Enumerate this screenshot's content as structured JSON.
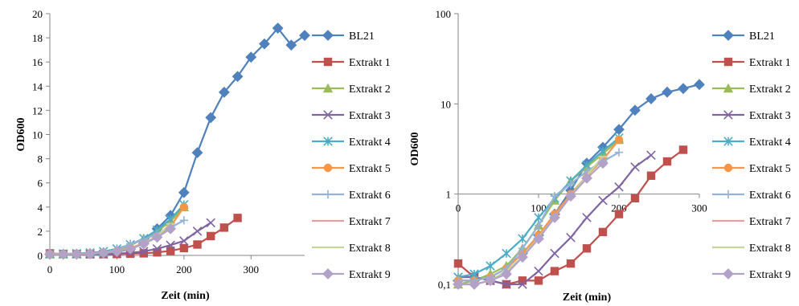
{
  "chart_data": [
    {
      "type": "line",
      "title": "",
      "xlabel": "Zeit (min)",
      "ylabel": "OD600",
      "xlim": [
        0,
        380
      ],
      "ylim": [
        0,
        20
      ],
      "x_ticks": [
        "0",
        "100",
        "200",
        "300"
      ],
      "y_ticks": [
        "0",
        "2",
        "4",
        "6",
        "8",
        "10",
        "12",
        "14",
        "16",
        "18",
        "20"
      ],
      "grid": false,
      "legend_position": "right",
      "series": [
        {
          "name": "BL21",
          "color": "#4f81bd",
          "marker": "diamond",
          "x": [
            0,
            20,
            40,
            60,
            80,
            100,
            120,
            140,
            160,
            180,
            200,
            220,
            240,
            260,
            280,
            300,
            320,
            340,
            360,
            380
          ],
          "y": [
            0.1,
            0.1,
            0.1,
            0.15,
            0.2,
            0.3,
            0.5,
            1.0,
            2.2,
            3.3,
            5.2,
            8.5,
            11.4,
            13.5,
            14.8,
            16.4,
            17.5,
            18.8,
            17.4,
            18.2
          ]
        },
        {
          "name": "Extrakt 1",
          "color": "#c0504d",
          "marker": "square",
          "x": [
            0,
            20,
            40,
            60,
            80,
            100,
            120,
            140,
            160,
            180,
            200,
            220,
            240,
            260,
            280
          ],
          "y": [
            0.17,
            0.12,
            0.11,
            0.1,
            0.1,
            0.11,
            0.14,
            0.17,
            0.25,
            0.38,
            0.6,
            0.9,
            1.6,
            2.3,
            3.1
          ]
        },
        {
          "name": "Extrakt 2",
          "color": "#9bbb59",
          "marker": "triangle",
          "x": [
            0,
            20,
            40,
            60,
            80,
            100,
            120,
            140,
            160,
            180,
            200
          ],
          "y": [
            0.1,
            0.1,
            0.11,
            0.15,
            0.25,
            0.45,
            0.8,
            1.4,
            2.0,
            2.8,
            4.0
          ]
        },
        {
          "name": "Extrakt 3",
          "color": "#8064a2",
          "marker": "x",
          "x": [
            0,
            20,
            40,
            60,
            80,
            100,
            120,
            140,
            160,
            180,
            200,
            220,
            240
          ],
          "y": [
            0.12,
            0.12,
            0.11,
            0.1,
            0.1,
            0.14,
            0.22,
            0.33,
            0.55,
            0.85,
            1.2,
            2.0,
            2.7
          ]
        },
        {
          "name": "Extrakt 4",
          "color": "#4bacc6",
          "marker": "star",
          "x": [
            0,
            20,
            40,
            60,
            80,
            100,
            120,
            140,
            160,
            180,
            200
          ],
          "y": [
            0.12,
            0.13,
            0.16,
            0.22,
            0.32,
            0.55,
            0.9,
            1.4,
            2.1,
            3.0,
            4.2
          ]
        },
        {
          "name": "Extrakt 5",
          "color": "#f79646",
          "marker": "circle",
          "x": [
            0,
            20,
            40,
            60,
            80,
            100,
            120,
            140,
            160,
            180,
            200
          ],
          "y": [
            0.11,
            0.11,
            0.12,
            0.15,
            0.22,
            0.35,
            0.6,
            1.0,
            1.6,
            2.4,
            4.0
          ]
        },
        {
          "name": "Extrakt 6",
          "color": "#95b3d7",
          "marker": "plus",
          "x": [
            0,
            20,
            40,
            60,
            80,
            100,
            120,
            140,
            160,
            180,
            200
          ],
          "y": [
            0.11,
            0.11,
            0.12,
            0.15,
            0.25,
            0.45,
            0.95,
            1.3,
            1.8,
            2.3,
            2.9
          ]
        },
        {
          "name": "Extrakt 7",
          "color": "#e6a19f",
          "marker": "dash",
          "x": [
            0,
            20,
            40,
            60,
            80,
            100,
            120,
            140,
            160,
            180
          ],
          "y": [
            0.1,
            0.1,
            0.11,
            0.14,
            0.2,
            0.33,
            0.55,
            0.95,
            1.6,
            2.6
          ]
        },
        {
          "name": "Extrakt 8",
          "color": "#c3d69b",
          "marker": "dash",
          "x": [
            0,
            20,
            40,
            60,
            80,
            100,
            120,
            140,
            160,
            180
          ],
          "y": [
            0.1,
            0.1,
            0.11,
            0.14,
            0.2,
            0.33,
            0.55,
            0.95,
            1.6,
            2.6
          ]
        },
        {
          "name": "Extrakt 9",
          "color": "#b3a2c7",
          "marker": "diamond",
          "x": [
            0,
            20,
            40,
            60,
            80,
            100,
            120,
            140,
            160,
            180
          ],
          "y": [
            0.1,
            0.1,
            0.11,
            0.13,
            0.2,
            0.32,
            0.55,
            0.95,
            1.5,
            2.2
          ]
        }
      ]
    },
    {
      "type": "line",
      "title": "",
      "xlabel": "Zeit (min)",
      "ylabel": "OD600",
      "xlim": [
        0,
        300
      ],
      "ylim": [
        0.1,
        100
      ],
      "yscale": "log",
      "x_ticks": [
        "0",
        "100",
        "200",
        "300"
      ],
      "y_ticks": [
        "0,1",
        "1",
        "10",
        "100"
      ],
      "grid": false,
      "legend_position": "right",
      "series": [
        {
          "name": "BL21",
          "color": "#4f81bd",
          "marker": "diamond",
          "x": [
            0,
            20,
            40,
            60,
            80,
            100,
            120,
            140,
            160,
            180,
            200,
            220,
            240,
            260,
            280,
            300
          ],
          "y": [
            0.11,
            0.11,
            0.12,
            0.15,
            0.22,
            0.35,
            0.6,
            1.1,
            2.2,
            3.3,
            5.2,
            8.5,
            11.4,
            13.5,
            14.8,
            16.4
          ]
        },
        {
          "name": "Extrakt 1",
          "color": "#c0504d",
          "marker": "square",
          "x": [
            0,
            20,
            40,
            60,
            80,
            100,
            120,
            140,
            160,
            180,
            200,
            220,
            240,
            260,
            280
          ],
          "y": [
            0.17,
            0.12,
            0.11,
            0.1,
            0.11,
            0.11,
            0.14,
            0.17,
            0.25,
            0.38,
            0.6,
            0.9,
            1.6,
            2.3,
            3.1
          ]
        },
        {
          "name": "Extrakt 2",
          "color": "#9bbb59",
          "marker": "triangle",
          "x": [
            0,
            20,
            40,
            60,
            80,
            100,
            120,
            140,
            160,
            180,
            200
          ],
          "y": [
            0.1,
            0.11,
            0.13,
            0.16,
            0.25,
            0.45,
            0.85,
            1.4,
            2.0,
            2.8,
            4.0
          ]
        },
        {
          "name": "Extrakt 3",
          "color": "#8064a2",
          "marker": "x",
          "x": [
            0,
            20,
            40,
            60,
            80,
            100,
            120,
            140,
            160,
            180,
            200,
            220,
            240
          ],
          "y": [
            0.12,
            0.12,
            0.11,
            0.1,
            0.1,
            0.14,
            0.22,
            0.33,
            0.55,
            0.85,
            1.2,
            2.0,
            2.7
          ]
        },
        {
          "name": "Extrakt 4",
          "color": "#4bacc6",
          "marker": "star",
          "x": [
            0,
            20,
            40,
            60,
            80,
            100,
            120,
            140,
            160,
            180,
            200
          ],
          "y": [
            0.12,
            0.13,
            0.16,
            0.22,
            0.32,
            0.55,
            0.9,
            1.4,
            2.1,
            3.0,
            4.2
          ]
        },
        {
          "name": "Extrakt 5",
          "color": "#f79646",
          "marker": "circle",
          "x": [
            0,
            20,
            40,
            60,
            80,
            100,
            120,
            140,
            160,
            180,
            200
          ],
          "y": [
            0.11,
            0.11,
            0.12,
            0.15,
            0.22,
            0.35,
            0.6,
            1.0,
            1.6,
            2.4,
            4.0
          ]
        },
        {
          "name": "Extrakt 6",
          "color": "#95b3d7",
          "marker": "plus",
          "x": [
            0,
            20,
            40,
            60,
            80,
            100,
            120,
            140,
            160,
            180,
            200
          ],
          "y": [
            0.11,
            0.11,
            0.12,
            0.15,
            0.25,
            0.45,
            0.95,
            1.3,
            1.8,
            2.3,
            2.9
          ]
        },
        {
          "name": "Extrakt 7",
          "color": "#e6a19f",
          "marker": "dash",
          "x": [
            0,
            20,
            40,
            60,
            80,
            100,
            120,
            140,
            160,
            180
          ],
          "y": [
            0.1,
            0.1,
            0.11,
            0.14,
            0.2,
            0.33,
            0.55,
            0.95,
            1.6,
            2.6
          ]
        },
        {
          "name": "Extrakt 8",
          "color": "#c3d69b",
          "marker": "dash",
          "x": [
            0,
            20,
            40,
            60,
            80,
            100,
            120,
            140,
            160,
            180
          ],
          "y": [
            0.1,
            0.1,
            0.11,
            0.14,
            0.2,
            0.33,
            0.55,
            0.95,
            1.6,
            2.6
          ]
        },
        {
          "name": "Extrakt 9",
          "color": "#b3a2c7",
          "marker": "diamond",
          "x": [
            0,
            20,
            40,
            60,
            80,
            100,
            120,
            140,
            160,
            180
          ],
          "y": [
            0.1,
            0.1,
            0.11,
            0.13,
            0.2,
            0.32,
            0.55,
            0.95,
            1.5,
            2.2
          ]
        }
      ]
    }
  ]
}
